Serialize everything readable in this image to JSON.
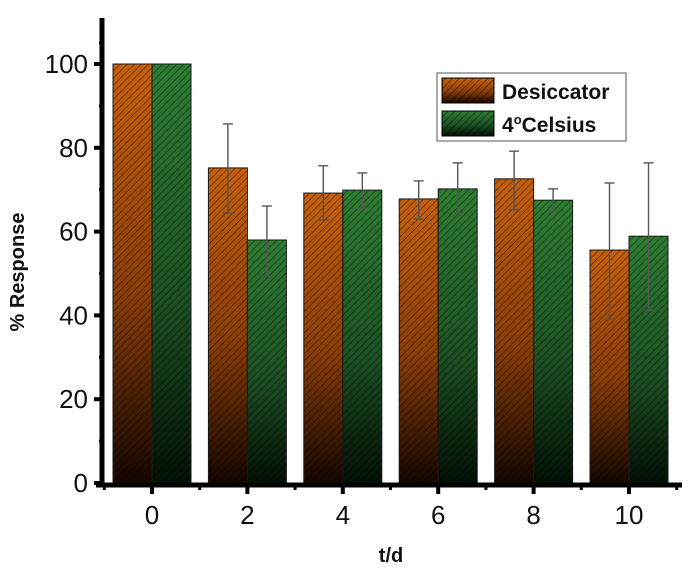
{
  "chart_data": {
    "type": "bar",
    "title": "",
    "xlabel": "t/d",
    "ylabel": "% Response",
    "categories": [
      "0",
      "2",
      "4",
      "6",
      "8",
      "10"
    ],
    "x": [
      0,
      2,
      4,
      6,
      8,
      10
    ],
    "ylim": [
      0,
      110
    ],
    "yticks": [
      0,
      20,
      40,
      60,
      80,
      100
    ],
    "xticks": [
      0,
      2,
      4,
      6,
      8,
      10
    ],
    "grid": false,
    "legend_position": "upper right",
    "series": [
      {
        "name": "Desiccator",
        "color": "#c0580a",
        "values": [
          100,
          75.2,
          69.2,
          67.8,
          72.6,
          55.6
        ],
        "error_upper": [
          null,
          85.7,
          75.7,
          72.1,
          79.2,
          71.6
        ],
        "error_lower": [
          null,
          64.4,
          62.8,
          63.0,
          65.2,
          39.1
        ]
      },
      {
        "name": "4°Celsius",
        "color": "#2e7d32",
        "values": [
          100,
          58.0,
          69.9,
          70.2,
          67.5,
          58.9
        ],
        "error_upper": [
          null,
          66.1,
          74.0,
          76.4,
          70.2,
          76.4
        ],
        "error_lower": [
          null,
          49.4,
          65.6,
          64.4,
          64.9,
          41.3
        ]
      }
    ]
  },
  "legend": {
    "items": [
      {
        "label": "Desiccator",
        "sup": ""
      },
      {
        "label_prefix": "4",
        "sup": "o",
        "label_suffix": "Celsius"
      }
    ]
  }
}
